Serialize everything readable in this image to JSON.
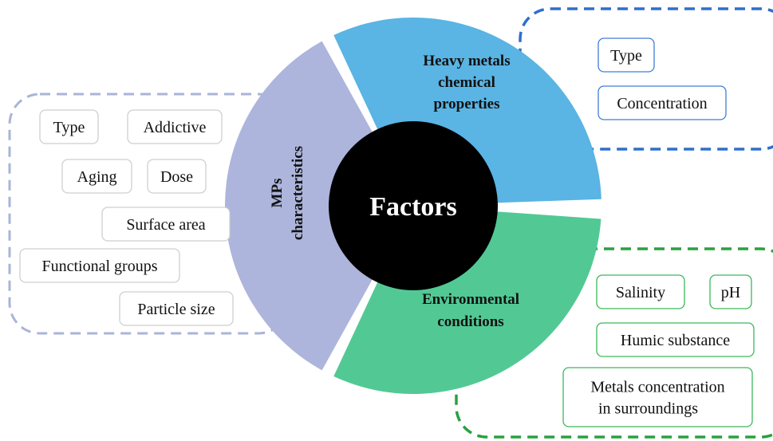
{
  "center": "Factors",
  "segments": [
    {
      "lines": [
        "MPs",
        "characteristics"
      ]
    },
    {
      "lines": [
        "Heavy metals",
        "chemical",
        "properties"
      ]
    },
    {
      "lines": [
        "Environmental",
        "conditions"
      ]
    }
  ],
  "groups": [
    {
      "items": [
        [
          "Type"
        ],
        [
          "Addictive"
        ],
        [
          "Aging"
        ],
        [
          "Dose"
        ],
        [
          "Surface area"
        ],
        [
          "Functional groups"
        ],
        [
          "Particle size"
        ]
      ]
    },
    {
      "items": [
        [
          "Type"
        ],
        [
          "Concentration"
        ]
      ]
    },
    {
      "items": [
        [
          "Salinity"
        ],
        [
          "pH"
        ],
        [
          "Humic substance"
        ],
        [
          "Metals concentration",
          "in surroundings"
        ]
      ]
    }
  ]
}
